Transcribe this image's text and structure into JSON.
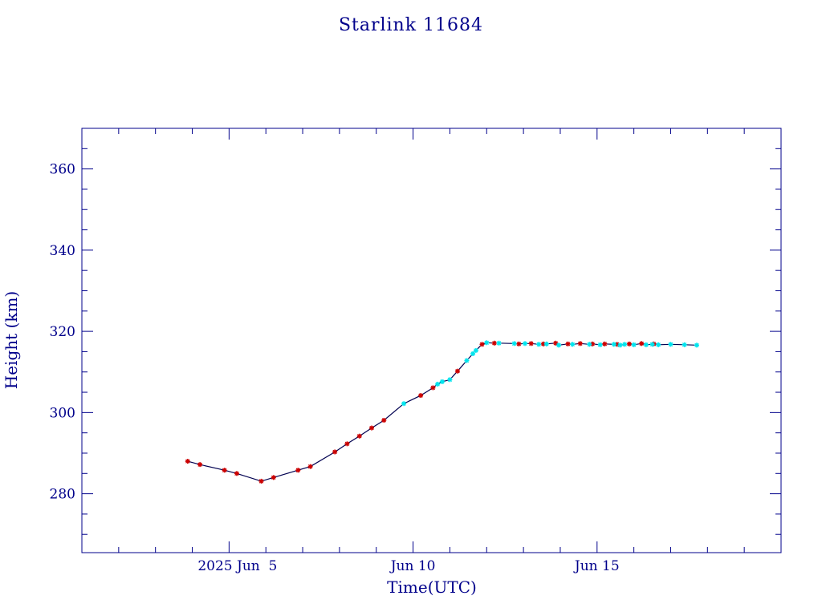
{
  "chart_data": {
    "type": "scatter",
    "title": "Starlink 11684",
    "xlabel": "Time(UTC)",
    "ylabel": "Height (km)",
    "xlim": [
      "2025-06-01",
      "2025-06-20"
    ],
    "ylim": [
      265.5,
      370.0
    ],
    "x_tick_labels": [
      {
        "date": "2025-06-05",
        "label": "2025 Jun  5"
      },
      {
        "date": "2025-06-10",
        "label": "Jun 10"
      },
      {
        "date": "2025-06-15",
        "label": "Jun 15"
      }
    ],
    "y_ticks": [
      280,
      300,
      320,
      340,
      360
    ],
    "grid": false,
    "legend": "none",
    "colors": {
      "axes": "#00008b",
      "line": "#000050",
      "series_red": "#cc0000",
      "series_cyan": "#00e5ee"
    },
    "series": [
      {
        "color": "red",
        "points": [
          [
            "2025-06-03 21:00",
            288.0
          ],
          [
            "2025-06-04 05:00",
            287.2
          ],
          [
            "2025-06-04 21:00",
            285.8
          ],
          [
            "2025-06-05 05:00",
            285.0
          ],
          [
            "2025-06-05 21:00",
            283.1
          ],
          [
            "2025-06-06 05:00",
            284.0
          ],
          [
            "2025-06-06 21:00",
            285.8
          ],
          [
            "2025-06-07 05:00",
            286.7
          ],
          [
            "2025-06-07 21:00",
            290.3
          ],
          [
            "2025-06-08 05:00",
            292.3
          ],
          [
            "2025-06-08 13:00",
            294.2
          ],
          [
            "2025-06-08 21:00",
            296.2
          ],
          [
            "2025-06-09 05:00",
            298.1
          ],
          [
            "2025-06-10 05:00",
            304.2
          ],
          [
            "2025-06-10 13:00",
            306.1
          ],
          [
            "2025-06-11 05:00",
            310.2
          ],
          [
            "2025-06-11 21:00",
            316.8
          ],
          [
            "2025-06-12 05:00",
            317.1
          ],
          [
            "2025-06-12 21:00",
            316.9
          ],
          [
            "2025-06-13 05:00",
            317.0
          ],
          [
            "2025-06-13 13:00",
            316.9
          ],
          [
            "2025-06-13 21:00",
            317.1
          ],
          [
            "2025-06-14 05:00",
            316.9
          ],
          [
            "2025-06-14 13:00",
            317.0
          ],
          [
            "2025-06-14 21:00",
            316.9
          ],
          [
            "2025-06-15 05:00",
            316.9
          ],
          [
            "2025-06-15 13:00",
            316.8
          ],
          [
            "2025-06-15 21:00",
            316.9
          ],
          [
            "2025-06-16 05:00",
            317.0
          ],
          [
            "2025-06-16 13:00",
            316.9
          ]
        ]
      },
      {
        "color": "cyan",
        "points": [
          [
            "2025-06-09 18:00",
            302.2
          ],
          [
            "2025-06-10 16:00",
            307.0
          ],
          [
            "2025-06-10 19:00",
            307.6
          ],
          [
            "2025-06-11 00:00",
            308.1
          ],
          [
            "2025-06-11 11:00",
            312.8
          ],
          [
            "2025-06-11 15:00",
            314.5
          ],
          [
            "2025-06-11 17:00",
            315.3
          ],
          [
            "2025-06-12 00:00",
            317.2
          ],
          [
            "2025-06-12 08:00",
            317.1
          ],
          [
            "2025-06-12 18:00",
            317.0
          ],
          [
            "2025-06-13 01:00",
            317.0
          ],
          [
            "2025-06-13 10:00",
            316.8
          ],
          [
            "2025-06-13 15:00",
            316.9
          ],
          [
            "2025-06-13 23:00",
            316.6
          ],
          [
            "2025-06-14 08:00",
            316.8
          ],
          [
            "2025-06-14 19:00",
            316.8
          ],
          [
            "2025-06-15 02:00",
            316.7
          ],
          [
            "2025-06-15 11:00",
            316.8
          ],
          [
            "2025-06-15 15:00",
            316.6
          ],
          [
            "2025-06-15 18:00",
            316.8
          ],
          [
            "2025-06-16 00:00",
            316.7
          ],
          [
            "2025-06-16 08:00",
            316.7
          ],
          [
            "2025-06-16 12:00",
            316.8
          ],
          [
            "2025-06-16 16:00",
            316.7
          ],
          [
            "2025-06-17 00:00",
            316.8
          ],
          [
            "2025-06-17 09:00",
            316.7
          ],
          [
            "2025-06-17 17:00",
            316.6
          ]
        ]
      }
    ]
  }
}
